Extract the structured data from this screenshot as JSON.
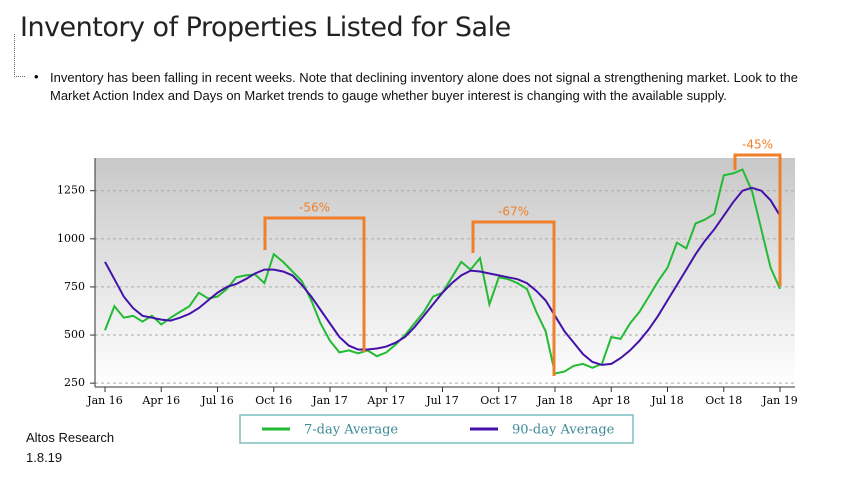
{
  "chart_data": {
    "type": "line",
    "title": "Inventory of Properties Listed for Sale",
    "subtitle": "Inventory has been falling in recent weeks. Note that declining inventory alone does not signal a strengthening market. Look to the Market Action Index and Days on Market trends to gauge whether buyer interest is changing with the available supply.",
    "categories": [
      "Jan 16",
      null,
      null,
      null,
      null,
      null,
      "Apr 16",
      null,
      null,
      null,
      null,
      null,
      "Jul 16",
      null,
      null,
      null,
      null,
      null,
      "Oct 16",
      null,
      null,
      null,
      null,
      null,
      "Jan 17",
      null,
      null,
      null,
      null,
      null,
      "Apr 17",
      null,
      null,
      null,
      null,
      null,
      "Jul 17",
      null,
      null,
      null,
      null,
      null,
      "Oct 17",
      null,
      null,
      null,
      null,
      null,
      "Jan 18",
      null,
      null,
      null,
      null,
      null,
      "Apr 18",
      null,
      null,
      null,
      null,
      null,
      "Jul 18",
      null,
      null,
      null,
      null,
      null,
      "Oct 18",
      null,
      null,
      null,
      null,
      null,
      "Jan 19"
    ],
    "series": [
      {
        "name": "7-day Average",
        "color": "#22bb33",
        "values": [
          525,
          650,
          590,
          600,
          570,
          600,
          555,
          590,
          620,
          650,
          720,
          690,
          700,
          740,
          800,
          810,
          815,
          770,
          920,
          880,
          830,
          780,
          680,
          560,
          470,
          410,
          420,
          405,
          420,
          390,
          410,
          450,
          500,
          560,
          620,
          700,
          720,
          800,
          880,
          840,
          900,
          660,
          800,
          790,
          770,
          740,
          620,
          520,
          300,
          310,
          340,
          350,
          330,
          350,
          490,
          480,
          560,
          620,
          700,
          780,
          850,
          980,
          950,
          1080,
          1100,
          1130,
          1330,
          1340,
          1360,
          1250,
          1050,
          850,
          740
        ]
      },
      {
        "name": "90-day Average",
        "color": "#4411aa",
        "values": [
          880,
          790,
          700,
          640,
          600,
          590,
          580,
          575,
          590,
          610,
          640,
          680,
          720,
          750,
          765,
          790,
          820,
          840,
          840,
          830,
          810,
          760,
          700,
          630,
          560,
          490,
          445,
          425,
          425,
          430,
          440,
          460,
          490,
          540,
          600,
          660,
          720,
          770,
          810,
          835,
          830,
          820,
          810,
          800,
          790,
          770,
          730,
          680,
          600,
          520,
          460,
          400,
          360,
          345,
          350,
          380,
          420,
          470,
          530,
          600,
          680,
          760,
          840,
          920,
          990,
          1050,
          1120,
          1190,
          1250,
          1265,
          1250,
          1200,
          1120
        ]
      }
    ],
    "ylim": [
      230,
      1420
    ],
    "yticks": [
      250,
      500,
      750,
      1000,
      1250
    ],
    "grid": true,
    "annotations": [
      {
        "text": "-56%"
      },
      {
        "text": "-67%"
      },
      {
        "text": "-45%"
      }
    ],
    "footnote": [
      "Altos Research",
      "1.8.19"
    ]
  }
}
